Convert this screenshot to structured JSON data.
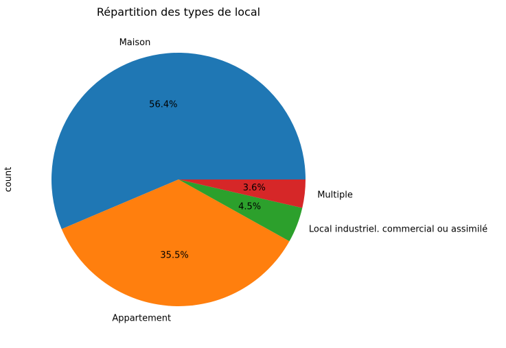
{
  "chart_data": {
    "type": "pie",
    "title": "Répartition des types de local",
    "ylabel": "count",
    "categories": [
      "Maison",
      "Appartement",
      "Local industriel. commercial ou assimilé",
      "Multiple"
    ],
    "values": [
      56.4,
      35.5,
      4.5,
      3.6
    ],
    "labels": [
      "56.4%",
      "35.5%",
      "4.5%",
      "3.6%"
    ],
    "colors": [
      "#1f77b4",
      "#ff7f0e",
      "#2ca02c",
      "#d62728"
    ],
    "start_angle_deg": 0,
    "direction": "counterclockwise",
    "legend": "none"
  }
}
